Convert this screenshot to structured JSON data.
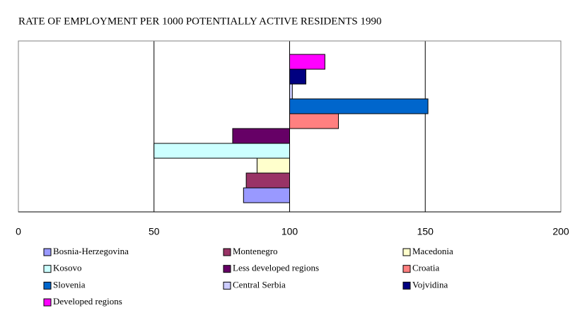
{
  "chart_data": {
    "type": "bar",
    "orientation": "horizontal",
    "title": "RATE OF EMPLOYMENT PER 1000 POTENTIALLY ACTIVE RESIDENTS 1990",
    "series": [
      {
        "name": "Bosnia-Herzegovina",
        "color": "#9999ff",
        "values": [
          83
        ]
      },
      {
        "name": "Montenegro",
        "color": "#993366",
        "values": [
          84
        ]
      },
      {
        "name": "Macedonia",
        "color": "#ffffcc",
        "values": [
          88
        ]
      },
      {
        "name": "Kosovo",
        "color": "#ccffff",
        "values": [
          50
        ]
      },
      {
        "name": "Less developed regions",
        "color": "#660066",
        "values": [
          79
        ]
      },
      {
        "name": "Croatia",
        "color": "#ff8080",
        "values": [
          118
        ]
      },
      {
        "name": "Slovenia",
        "color": "#0066cc",
        "values": [
          151
        ]
      },
      {
        "name": "Central Serbia",
        "color": "#ccccff",
        "values": [
          101
        ]
      },
      {
        "name": "Vojvidina",
        "color": "#000080",
        "values": [
          106
        ]
      },
      {
        "name": "Developed regions",
        "color": "#ff00ff",
        "values": [
          113
        ]
      }
    ],
    "baseline": 100,
    "xlim": [
      0,
      200
    ],
    "xticks": [
      0,
      50,
      100,
      150,
      200
    ],
    "grid": true
  }
}
